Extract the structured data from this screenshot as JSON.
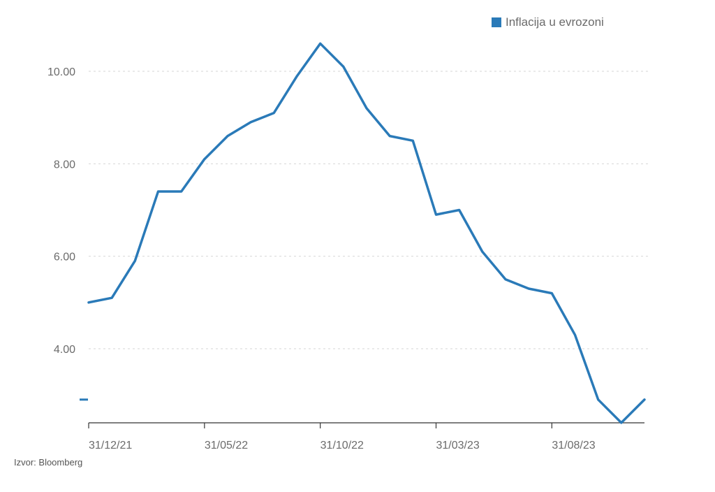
{
  "legend": {
    "label": "Inflacija u evrozoni",
    "color": "#2a7ab8"
  },
  "source": "Izvor: Bloomberg",
  "chart_data": {
    "type": "line",
    "title": "",
    "xlabel": "",
    "ylabel": "",
    "ylim": [
      2.4,
      11.0
    ],
    "grid": true,
    "legend_position": "top-right",
    "y_ticks": [
      4.0,
      6.0,
      8.0,
      10.0
    ],
    "y_tick_labels": [
      "4.00",
      "6.00",
      "8.00",
      "10.00"
    ],
    "x_tick_labels": [
      "31/12/21",
      "31/05/22",
      "31/10/22",
      "31/03/23",
      "31/08/23"
    ],
    "x_tick_indices": [
      0,
      5,
      10,
      15,
      20
    ],
    "x": [
      "31/12/21",
      "31/01/22",
      "28/02/22",
      "31/03/22",
      "30/04/22",
      "31/05/22",
      "30/06/22",
      "31/07/22",
      "31/08/22",
      "30/09/22",
      "31/10/22",
      "30/11/22",
      "31/12/22",
      "31/01/23",
      "28/02/23",
      "31/03/23",
      "30/04/23",
      "31/05/23",
      "30/06/23",
      "31/07/23",
      "31/08/23",
      "30/09/23",
      "31/10/23",
      "30/11/23",
      "31/12/23"
    ],
    "series": [
      {
        "name": "Inflacija u evrozoni",
        "color": "#2a7ab8",
        "values": [
          5.0,
          5.1,
          5.9,
          7.4,
          7.4,
          8.1,
          8.6,
          8.9,
          9.1,
          9.9,
          10.6,
          10.1,
          9.2,
          8.6,
          8.5,
          6.9,
          7.0,
          6.1,
          5.5,
          5.3,
          5.2,
          4.3,
          2.9,
          2.4,
          2.9
        ]
      }
    ]
  }
}
